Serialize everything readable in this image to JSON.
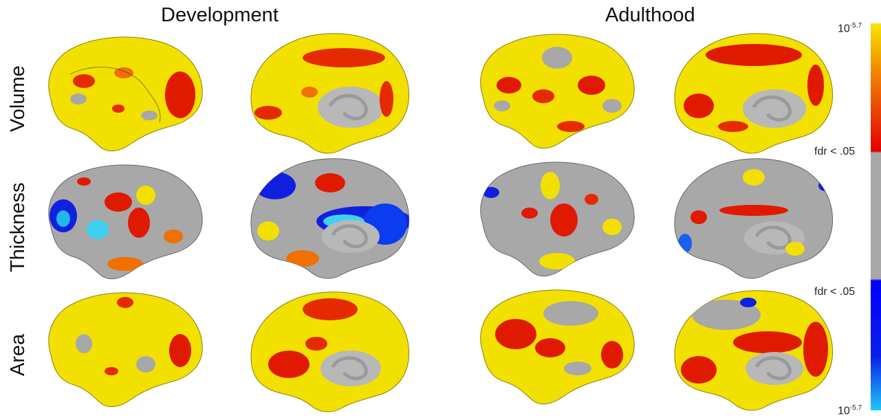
{
  "columns": {
    "development": "Development",
    "adulthood": "Adulthood"
  },
  "rows": {
    "volume": "Volume",
    "thickness": "Thickness",
    "area": "Area"
  },
  "colorbar": {
    "top_base": "10",
    "top_exp": "-5.7",
    "upper_threshold": "fdr < .05",
    "lower_threshold": "fdr < .05",
    "bottom_base": "10",
    "bottom_exp": "-5.7",
    "colors": {
      "yellow": "#f7e600",
      "orange": "#f08a00",
      "red": "#e40000",
      "gray": "#a8a8a8",
      "blue": "#0010e0",
      "cyan": "#20b8f0"
    }
  },
  "panels": [
    {
      "name": "development-volume-lateral",
      "view": "lateral"
    },
    {
      "name": "development-volume-medial",
      "view": "medial"
    },
    {
      "name": "adulthood-volume-lateral",
      "view": "lateral"
    },
    {
      "name": "adulthood-volume-medial",
      "view": "medial"
    },
    {
      "name": "development-thickness-lateral",
      "view": "lateral"
    },
    {
      "name": "development-thickness-medial",
      "view": "medial"
    },
    {
      "name": "adulthood-thickness-lateral",
      "view": "lateral"
    },
    {
      "name": "adulthood-thickness-medial",
      "view": "medial"
    },
    {
      "name": "development-area-lateral",
      "view": "lateral"
    },
    {
      "name": "development-area-medial",
      "view": "medial"
    },
    {
      "name": "adulthood-area-lateral",
      "view": "lateral"
    },
    {
      "name": "adulthood-area-medial",
      "view": "medial"
    }
  ]
}
